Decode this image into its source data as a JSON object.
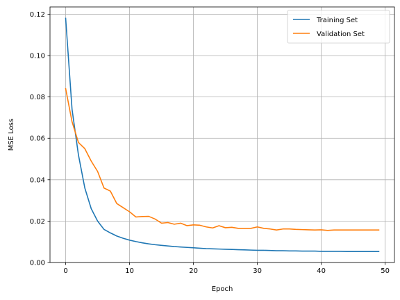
{
  "chart_data": {
    "type": "line",
    "title": "",
    "xlabel": "Epoch",
    "ylabel": "MSE Loss",
    "xlim": [
      -2.45,
      51.45
    ],
    "ylim": [
      0.0,
      0.1235
    ],
    "x_ticks": [
      0,
      10,
      20,
      30,
      40,
      50
    ],
    "y_ticks": [
      0.0,
      0.02,
      0.04,
      0.06,
      0.08,
      0.1,
      0.12
    ],
    "x_tick_labels": [
      "0",
      "10",
      "20",
      "30",
      "40",
      "50"
    ],
    "y_tick_labels": [
      "0.00",
      "0.02",
      "0.04",
      "0.06",
      "0.08",
      "0.10",
      "0.12"
    ],
    "grid": true,
    "legend_position": "top-right",
    "x": [
      0,
      1,
      2,
      3,
      4,
      5,
      6,
      7,
      8,
      9,
      10,
      11,
      12,
      13,
      14,
      15,
      16,
      17,
      18,
      19,
      20,
      21,
      22,
      23,
      24,
      25,
      26,
      27,
      28,
      29,
      30,
      31,
      32,
      33,
      34,
      35,
      36,
      37,
      38,
      39,
      40,
      41,
      42,
      43,
      44,
      45,
      46,
      47,
      48,
      49
    ],
    "series": [
      {
        "name": "Training Set",
        "color": "#1f77b4",
        "values": [
          0.118,
          0.074,
          0.052,
          0.036,
          0.026,
          0.02,
          0.016,
          0.0143,
          0.0128,
          0.0117,
          0.0108,
          0.0101,
          0.0095,
          0.009,
          0.0086,
          0.0083,
          0.008,
          0.0077,
          0.0075,
          0.0073,
          0.0071,
          0.0069,
          0.0067,
          0.0066,
          0.0065,
          0.0064,
          0.0063,
          0.0062,
          0.0061,
          0.006,
          0.0059,
          0.0059,
          0.0058,
          0.0057,
          0.0057,
          0.0056,
          0.0056,
          0.0055,
          0.0055,
          0.0055,
          0.0054,
          0.0054,
          0.0054,
          0.0054,
          0.0053,
          0.0053,
          0.0053,
          0.0053,
          0.0053,
          0.0053
        ]
      },
      {
        "name": "Validation Set",
        "color": "#ff7f0e",
        "values": [
          0.084,
          0.068,
          0.058,
          0.055,
          0.049,
          0.044,
          0.036,
          0.0345,
          0.0285,
          0.0265,
          0.0245,
          0.022,
          0.0222,
          0.0223,
          0.021,
          0.019,
          0.0193,
          0.0185,
          0.019,
          0.0178,
          0.0182,
          0.018,
          0.0172,
          0.0167,
          0.0178,
          0.0168,
          0.017,
          0.0165,
          0.0165,
          0.0165,
          0.0172,
          0.0165,
          0.0162,
          0.0157,
          0.0162,
          0.0162,
          0.016,
          0.0159,
          0.0158,
          0.0157,
          0.0158,
          0.0155,
          0.0157,
          0.0157,
          0.0157,
          0.0157,
          0.0157,
          0.0157,
          0.0157,
          0.0157
        ]
      }
    ]
  }
}
